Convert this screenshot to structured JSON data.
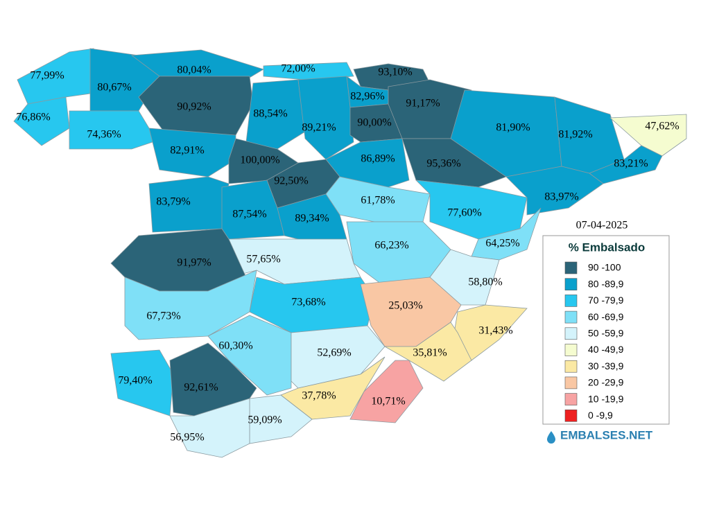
{
  "map": {
    "date": "07-04-2025",
    "regions": [
      {
        "label": "77,99%",
        "color": "#27c7ef"
      },
      {
        "label": "76,86%",
        "color": "#27c7ef"
      },
      {
        "label": "80,67%",
        "color": "#0aa0cc"
      },
      {
        "label": "80,04%",
        "color": "#0aa0cc"
      },
      {
        "label": "72,00%",
        "color": "#27c7ef"
      },
      {
        "label": "74,36%",
        "color": "#27c7ef"
      },
      {
        "label": "90,92%",
        "color": "#2b6478"
      },
      {
        "label": "88,54%",
        "color": "#0aa0cc"
      },
      {
        "label": "93,10%",
        "color": "#2b6478"
      },
      {
        "label": "82,96%",
        "color": "#0aa0cc"
      },
      {
        "label": "91,17%",
        "color": "#2b6478"
      },
      {
        "label": "89,21%",
        "color": "#0aa0cc"
      },
      {
        "label": "90,00%",
        "color": "#2b6478"
      },
      {
        "label": "81,90%",
        "color": "#0aa0cc"
      },
      {
        "label": "81,92%",
        "color": "#0aa0cc"
      },
      {
        "label": "47,62%",
        "color": "#f5fcd0"
      },
      {
        "label": "83,21%",
        "color": "#0aa0cc"
      },
      {
        "label": "82,91%",
        "color": "#0aa0cc"
      },
      {
        "label": "100,00%",
        "color": "#2b6478"
      },
      {
        "label": "86,89%",
        "color": "#0aa0cc"
      },
      {
        "label": "95,36%",
        "color": "#2b6478"
      },
      {
        "label": "92,50%",
        "color": "#2b6478"
      },
      {
        "label": "61,78%",
        "color": "#7fe0f7"
      },
      {
        "label": "77,60%",
        "color": "#27c7ef"
      },
      {
        "label": "83,97%",
        "color": "#0aa0cc"
      },
      {
        "label": "83,79%",
        "color": "#0aa0cc"
      },
      {
        "label": "87,54%",
        "color": "#0aa0cc"
      },
      {
        "label": "89,34%",
        "color": "#0aa0cc"
      },
      {
        "label": "64,25%",
        "color": "#7fe0f7"
      },
      {
        "label": "66,23%",
        "color": "#7fe0f7"
      },
      {
        "label": "57,65%",
        "color": "#d4f3fb"
      },
      {
        "label": "91,97%",
        "color": "#2b6478"
      },
      {
        "label": "58,80%",
        "color": "#d4f3fb"
      },
      {
        "label": "67,73%",
        "color": "#7fe0f7"
      },
      {
        "label": "73,68%",
        "color": "#27c7ef"
      },
      {
        "label": "25,03%",
        "color": "#f9c7a4"
      },
      {
        "label": "31,43%",
        "color": "#fbe9a4"
      },
      {
        "label": "60,30%",
        "color": "#7fe0f7"
      },
      {
        "label": "52,69%",
        "color": "#d4f3fb"
      },
      {
        "label": "35,81%",
        "color": "#fbe9a4"
      },
      {
        "label": "79,40%",
        "color": "#27c7ef"
      },
      {
        "label": "92,61%",
        "color": "#2b6478"
      },
      {
        "label": "37,78%",
        "color": "#fbe9a4"
      },
      {
        "label": "10,71%",
        "color": "#f7a3a3"
      },
      {
        "label": "59,09%",
        "color": "#d4f3fb"
      },
      {
        "label": "56,95%",
        "color": "#d4f3fb"
      }
    ],
    "legend": {
      "title": "% Embalsado",
      "items": [
        {
          "label": "90 -100",
          "color": "#2b6478"
        },
        {
          "label": "80 -89,9",
          "color": "#0aa0cc"
        },
        {
          "label": "70 -79,9",
          "color": "#27c7ef"
        },
        {
          "label": "60 -69,9",
          "color": "#7fe0f7"
        },
        {
          "label": "50 -59,9",
          "color": "#d4f3fb"
        },
        {
          "label": "40 -49,9",
          "color": "#f5fcd0"
        },
        {
          "label": "30 -39,9",
          "color": "#fbe9a4"
        },
        {
          "label": "20 -29,9",
          "color": "#f9c7a4"
        },
        {
          "label": "10 -19,9",
          "color": "#f7a3a3"
        },
        {
          "label": "0 -9,9",
          "color": "#ee2020"
        }
      ]
    },
    "brand": "EMBALSES.NET"
  }
}
